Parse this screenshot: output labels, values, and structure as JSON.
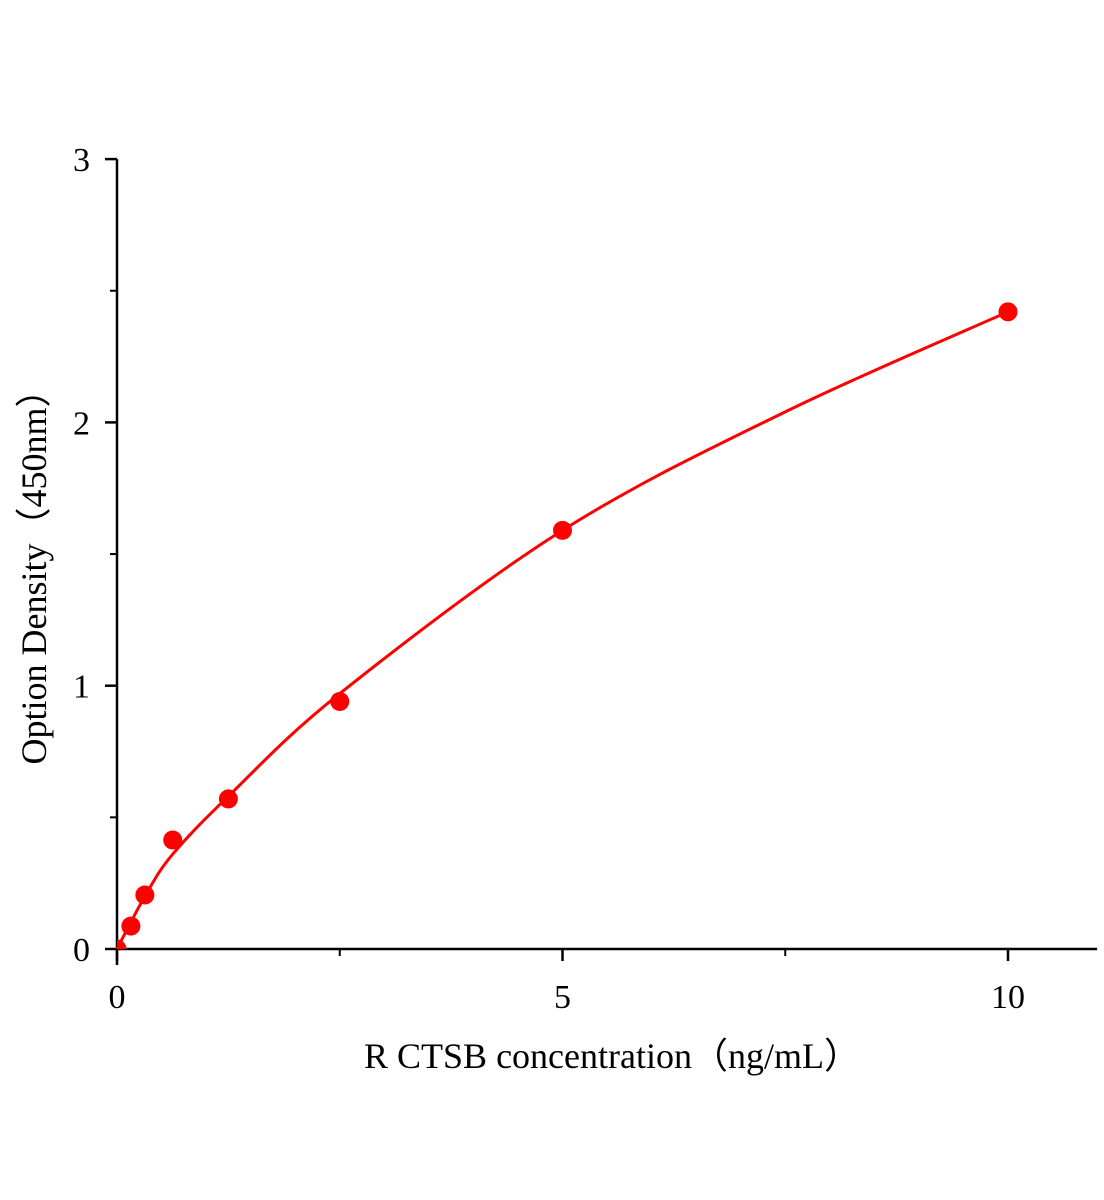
{
  "chart_data": {
    "type": "scatter",
    "title": "",
    "xlabel": "R CTSB concentration（ng/mL）",
    "ylabel": "Option Density（450nm）",
    "xlim": [
      0,
      11
    ],
    "ylim": [
      0,
      3
    ],
    "x_ticks": [
      "0",
      "5",
      "10"
    ],
    "x_tick_values": [
      0,
      5,
      10
    ],
    "x_minor_ticks": [
      2.5,
      7.5
    ],
    "y_ticks": [
      "0",
      "1",
      "2",
      "3"
    ],
    "y_tick_values": [
      0,
      1,
      2,
      3
    ],
    "y_minor_ticks": [
      0.5,
      1.5,
      2.5
    ],
    "grid": false,
    "legend": "none",
    "color": "#ff0000",
    "points": {
      "x": [
        0,
        0.156,
        0.3125,
        0.625,
        1.25,
        2.5,
        5,
        10
      ],
      "y": [
        0,
        0.087,
        0.205,
        0.414,
        0.57,
        0.94,
        1.59,
        2.42
      ]
    },
    "fit_curve": {
      "x": [
        0,
        0.3125,
        0.625,
        1.25,
        2.5,
        5,
        7.5,
        10
      ],
      "y": [
        0,
        0.2,
        0.36,
        0.58,
        0.97,
        1.59,
        2.04,
        2.42
      ]
    }
  }
}
